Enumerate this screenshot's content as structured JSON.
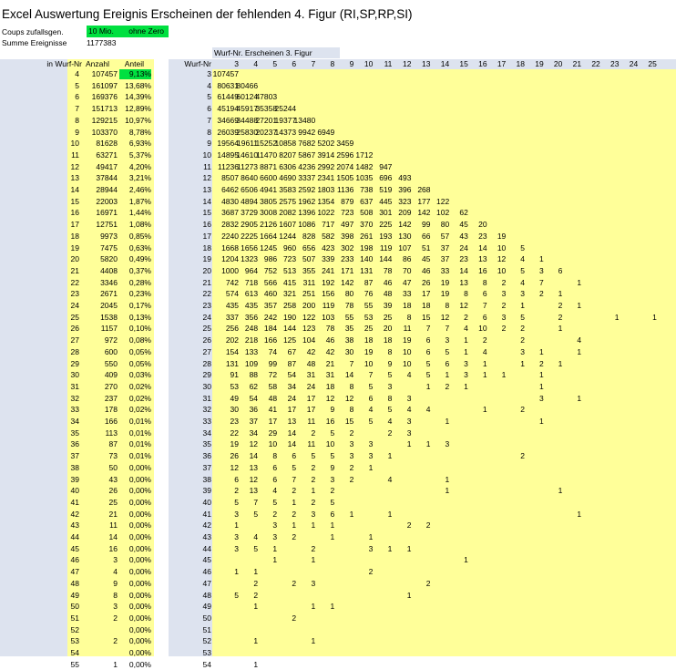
{
  "sheet": {
    "title": "Excel Auswertung Ereignis Erscheinen der fehlenden 4. Figur (RI,SP,RP,SI)",
    "coups_label": "Coups zufallsgen.",
    "coups_value": "10 Mio.",
    "coups_note": "ohne Zero",
    "sum_label": "Summe Ereignisse",
    "sum_value": "1177383",
    "highlight_color": "#00e040",
    "data_bg_color": "#ffff99",
    "label_bg_color": "#dde3ef"
  },
  "left_table": {
    "headers": [
      "in Wurf-Nr",
      "Anzahl",
      "Anteil"
    ],
    "rows": [
      [
        "4",
        "107457",
        "9,13%"
      ],
      [
        "5",
        "161097",
        "13,68%"
      ],
      [
        "6",
        "169376",
        "14,39%"
      ],
      [
        "7",
        "151713",
        "12,89%"
      ],
      [
        "8",
        "129215",
        "10,97%"
      ],
      [
        "9",
        "103370",
        "8,78%"
      ],
      [
        "10",
        "81628",
        "6,93%"
      ],
      [
        "11",
        "63271",
        "5,37%"
      ],
      [
        "12",
        "49417",
        "4,20%"
      ],
      [
        "13",
        "37844",
        "3,21%"
      ],
      [
        "14",
        "28944",
        "2,46%"
      ],
      [
        "15",
        "22003",
        "1,87%"
      ],
      [
        "16",
        "16971",
        "1,44%"
      ],
      [
        "17",
        "12751",
        "1,08%"
      ],
      [
        "18",
        "9973",
        "0,85%"
      ],
      [
        "19",
        "7475",
        "0,63%"
      ],
      [
        "20",
        "5820",
        "0,49%"
      ],
      [
        "21",
        "4408",
        "0,37%"
      ],
      [
        "22",
        "3346",
        "0,28%"
      ],
      [
        "23",
        "2671",
        "0,23%"
      ],
      [
        "24",
        "2045",
        "0,17%"
      ],
      [
        "25",
        "1538",
        "0,13%"
      ],
      [
        "26",
        "1157",
        "0,10%"
      ],
      [
        "27",
        "972",
        "0,08%"
      ],
      [
        "28",
        "600",
        "0,05%"
      ],
      [
        "29",
        "550",
        "0,05%"
      ],
      [
        "30",
        "409",
        "0,03%"
      ],
      [
        "31",
        "270",
        "0,02%"
      ],
      [
        "32",
        "237",
        "0,02%"
      ],
      [
        "33",
        "178",
        "0,02%"
      ],
      [
        "34",
        "166",
        "0,01%"
      ],
      [
        "35",
        "113",
        "0,01%"
      ],
      [
        "36",
        "87",
        "0,01%"
      ],
      [
        "37",
        "73",
        "0,01%"
      ],
      [
        "38",
        "50",
        "0,00%"
      ],
      [
        "39",
        "43",
        "0,00%"
      ],
      [
        "40",
        "26",
        "0,00%"
      ],
      [
        "41",
        "25",
        "0,00%"
      ],
      [
        "42",
        "21",
        "0,00%"
      ],
      [
        "43",
        "11",
        "0,00%"
      ],
      [
        "44",
        "14",
        "0,00%"
      ],
      [
        "45",
        "16",
        "0,00%"
      ],
      [
        "46",
        "3",
        "0,00%"
      ],
      [
        "47",
        "4",
        "0,00%"
      ],
      [
        "48",
        "9",
        "0,00%"
      ],
      [
        "49",
        "8",
        "0,00%"
      ],
      [
        "50",
        "3",
        "0,00%"
      ],
      [
        "51",
        "2",
        "0,00%"
      ],
      [
        "52",
        "",
        "0,00%"
      ],
      [
        "53",
        "2",
        "0,00%"
      ],
      [
        "54",
        "",
        "0,00%"
      ],
      [
        "55",
        "1",
        "0,00%"
      ]
    ]
  },
  "right_table": {
    "group_label": "Wurf-Nr. Erscheinen 3. Figur",
    "row_header": "Wurf-Nr",
    "columns": [
      "3",
      "4",
      "5",
      "6",
      "7",
      "8",
      "9",
      "10",
      "11",
      "12",
      "13",
      "14",
      "15",
      "16",
      "17",
      "18",
      "19",
      "20",
      "21",
      "22",
      "23",
      "24",
      "25"
    ],
    "row_labels": [
      "3",
      "4",
      "5",
      "6",
      "7",
      "8",
      "9",
      "10",
      "11",
      "12",
      "13",
      "14",
      "15",
      "16",
      "17",
      "18",
      "19",
      "20",
      "21",
      "22",
      "23",
      "24",
      "25",
      "26",
      "27",
      "28",
      "29",
      "30",
      "31",
      "32",
      "33",
      "34",
      "35",
      "36",
      "37",
      "38",
      "39",
      "40",
      "41",
      "42",
      "43",
      "44",
      "45",
      "46",
      "47",
      "48",
      "49",
      "50",
      "51",
      "52",
      "53",
      "54"
    ],
    "rows": [
      [
        "107457"
      ],
      [
        "80631",
        "80466"
      ],
      [
        "61449",
        "60124",
        "47803"
      ],
      [
        "45194",
        "45917",
        "35358",
        "25244"
      ],
      [
        "34669",
        "34488",
        "27201",
        "19377",
        "13480"
      ],
      [
        "26039",
        "25830",
        "20237",
        "14373",
        "9942",
        "6949"
      ],
      [
        "19564",
        "19611",
        "15252",
        "10858",
        "7682",
        "5202",
        "3459"
      ],
      [
        "14895",
        "14610",
        "11470",
        "8207",
        "5867",
        "3914",
        "2596",
        "1712"
      ],
      [
        "11236",
        "11273",
        "8871",
        "6306",
        "4236",
        "2992",
        "2074",
        "1482",
        "947"
      ],
      [
        "8507",
        "8640",
        "6600",
        "4690",
        "3337",
        "2341",
        "1505",
        "1035",
        "696",
        "493"
      ],
      [
        "6462",
        "6506",
        "4941",
        "3583",
        "2592",
        "1803",
        "1136",
        "738",
        "519",
        "396",
        "268"
      ],
      [
        "4830",
        "4894",
        "3805",
        "2575",
        "1962",
        "1354",
        "879",
        "637",
        "445",
        "323",
        "177",
        "122"
      ],
      [
        "3687",
        "3729",
        "3008",
        "2082",
        "1396",
        "1022",
        "723",
        "508",
        "301",
        "209",
        "142",
        "102",
        "62"
      ],
      [
        "2832",
        "2905",
        "2126",
        "1607",
        "1086",
        "717",
        "497",
        "370",
        "225",
        "142",
        "99",
        "80",
        "45",
        "20"
      ],
      [
        "2240",
        "2225",
        "1664",
        "1244",
        "828",
        "582",
        "398",
        "261",
        "193",
        "130",
        "66",
        "57",
        "43",
        "23",
        "19"
      ],
      [
        "1668",
        "1656",
        "1245",
        "960",
        "656",
        "423",
        "302",
        "198",
        "119",
        "107",
        "51",
        "37",
        "24",
        "14",
        "10",
        "5"
      ],
      [
        "1204",
        "1323",
        "986",
        "723",
        "507",
        "339",
        "233",
        "140",
        "144",
        "86",
        "45",
        "37",
        "23",
        "13",
        "12",
        "4",
        "1"
      ],
      [
        "1000",
        "964",
        "752",
        "513",
        "355",
        "241",
        "171",
        "131",
        "78",
        "70",
        "46",
        "33",
        "14",
        "16",
        "10",
        "5",
        "3",
        "6"
      ],
      [
        "742",
        "718",
        "566",
        "415",
        "311",
        "192",
        "142",
        "87",
        "46",
        "47",
        "26",
        "19",
        "13",
        "8",
        "2",
        "4",
        "7",
        "",
        "1"
      ],
      [
        "574",
        "613",
        "460",
        "321",
        "251",
        "156",
        "80",
        "76",
        "48",
        "33",
        "17",
        "19",
        "8",
        "6",
        "3",
        "3",
        "2",
        "1"
      ],
      [
        "435",
        "435",
        "357",
        "258",
        "200",
        "119",
        "78",
        "55",
        "39",
        "18",
        "18",
        "8",
        "12",
        "7",
        "2",
        "1",
        "",
        "2",
        "1"
      ],
      [
        "337",
        "356",
        "242",
        "190",
        "122",
        "103",
        "55",
        "53",
        "25",
        "8",
        "15",
        "12",
        "2",
        "6",
        "3",
        "5",
        "",
        "2",
        "",
        "",
        "1",
        "",
        "1"
      ],
      [
        "256",
        "248",
        "184",
        "144",
        "123",
        "78",
        "35",
        "25",
        "20",
        "11",
        "7",
        "7",
        "4",
        "10",
        "2",
        "2",
        "",
        "1"
      ],
      [
        "202",
        "218",
        "166",
        "125",
        "104",
        "46",
        "38",
        "18",
        "18",
        "19",
        "6",
        "3",
        "1",
        "2",
        "",
        "2",
        "",
        "",
        "4"
      ],
      [
        "154",
        "133",
        "74",
        "67",
        "42",
        "42",
        "30",
        "19",
        "8",
        "10",
        "6",
        "5",
        "1",
        "4",
        "",
        "3",
        "1",
        "",
        "1"
      ],
      [
        "131",
        "109",
        "99",
        "87",
        "48",
        "21",
        "7",
        "10",
        "9",
        "10",
        "5",
        "6",
        "3",
        "1",
        "",
        "1",
        "2",
        "1"
      ],
      [
        "91",
        "88",
        "72",
        "54",
        "31",
        "31",
        "14",
        "7",
        "5",
        "4",
        "5",
        "1",
        "3",
        "1",
        "1",
        "",
        "1"
      ],
      [
        "53",
        "62",
        "58",
        "34",
        "24",
        "18",
        "8",
        "5",
        "3",
        "",
        "1",
        "2",
        "1",
        "",
        "",
        "",
        "1"
      ],
      [
        "49",
        "54",
        "48",
        "24",
        "17",
        "12",
        "12",
        "6",
        "8",
        "3",
        "",
        "",
        "",
        "",
        "",
        "",
        "3",
        "",
        "1"
      ],
      [
        "30",
        "36",
        "41",
        "17",
        "17",
        "9",
        "8",
        "4",
        "5",
        "4",
        "4",
        "",
        "",
        "1",
        "",
        "2"
      ],
      [
        "23",
        "37",
        "17",
        "13",
        "11",
        "16",
        "15",
        "5",
        "4",
        "3",
        "",
        "1",
        "",
        "",
        "",
        "",
        "1"
      ],
      [
        "22",
        "34",
        "29",
        "14",
        "2",
        "5",
        "2",
        "",
        "2",
        "3"
      ],
      [
        "19",
        "12",
        "10",
        "14",
        "11",
        "10",
        "3",
        "3",
        "",
        "1",
        "1",
        "3"
      ],
      [
        "26",
        "14",
        "8",
        "6",
        "5",
        "5",
        "3",
        "3",
        "1",
        "",
        "",
        "",
        "",
        "",
        "",
        "2"
      ],
      [
        "12",
        "13",
        "6",
        "5",
        "2",
        "9",
        "2",
        "1"
      ],
      [
        "6",
        "12",
        "6",
        "7",
        "2",
        "3",
        "2",
        "",
        "4",
        "",
        "",
        "1"
      ],
      [
        "2",
        "13",
        "4",
        "2",
        "1",
        "2",
        "",
        "",
        "",
        "",
        "",
        "1",
        "",
        "",
        "",
        "",
        "",
        "1"
      ],
      [
        "5",
        "7",
        "5",
        "1",
        "2",
        "5"
      ],
      [
        "3",
        "5",
        "2",
        "2",
        "3",
        "6",
        "1",
        "",
        "1",
        "",
        "",
        "",
        "",
        "",
        "",
        "",
        "",
        "",
        "1"
      ],
      [
        "1",
        "",
        "3",
        "1",
        "1",
        "1",
        "",
        "",
        "",
        "2",
        "2"
      ],
      [
        "3",
        "4",
        "3",
        "2",
        "",
        "1",
        "",
        "1"
      ],
      [
        "3",
        "5",
        "1",
        "",
        "2",
        "",
        "",
        "3",
        "1",
        "1"
      ],
      [
        "",
        "",
        "1",
        "",
        "1",
        "",
        "",
        "",
        "",
        "",
        "",
        "",
        "1"
      ],
      [
        "1",
        "1",
        "",
        "",
        "",
        "",
        "",
        "2"
      ],
      [
        "",
        "2",
        "",
        "2",
        "3",
        "",
        "",
        "",
        "",
        "",
        "2"
      ],
      [
        "5",
        "2",
        "",
        "",
        "",
        "",
        "",
        "",
        "",
        "1"
      ],
      [
        "",
        "1",
        "",
        "",
        "1",
        "1"
      ],
      [
        "",
        "",
        "",
        "2"
      ],
      [],
      [
        "",
        "1",
        "",
        "",
        "1"
      ],
      [],
      [
        "",
        "1"
      ]
    ]
  }
}
